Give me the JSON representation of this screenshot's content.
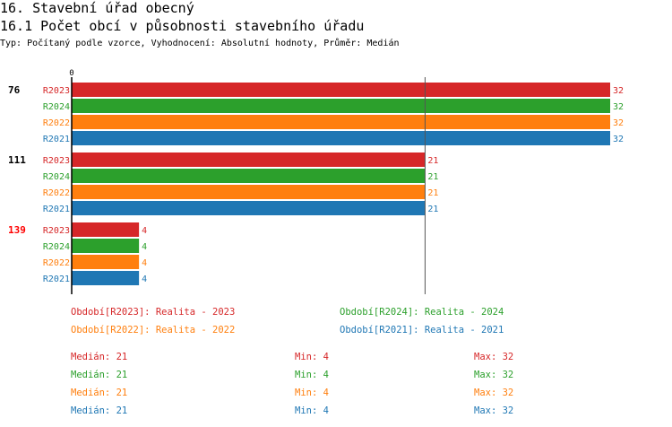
{
  "heading": "16. Stavební úřad obecný",
  "subheading": "16.1 Počet obcí v působnosti stavebního úřadu",
  "description": "Typ: Počítaný podle vzorce, Vyhodnocení: Absolutní hodnoty, Průměr: Medián",
  "colors": {
    "R2023": "#d62728",
    "R2024": "#2ca02c",
    "R2022": "#ff7f0e",
    "R2021": "#1f77b4"
  },
  "chart_data": {
    "type": "bar",
    "orientation": "horizontal",
    "x_tick_labels": [
      "0"
    ],
    "xlim": [
      0,
      32
    ],
    "reference_line": {
      "label": "Medián",
      "value": 21
    },
    "groups": [
      {
        "label": "76",
        "highlight": false,
        "bars": [
          {
            "series": "R2023",
            "value": 32
          },
          {
            "series": "R2024",
            "value": 32
          },
          {
            "series": "R2022",
            "value": 32
          },
          {
            "series": "R2021",
            "value": 32
          }
        ]
      },
      {
        "label": "111",
        "highlight": false,
        "bars": [
          {
            "series": "R2023",
            "value": 21
          },
          {
            "series": "R2024",
            "value": 21
          },
          {
            "series": "R2022",
            "value": 21
          },
          {
            "series": "R2021",
            "value": 21
          }
        ]
      },
      {
        "label": "139",
        "highlight": true,
        "bars": [
          {
            "series": "R2023",
            "value": 4
          },
          {
            "series": "R2024",
            "value": 4
          },
          {
            "series": "R2022",
            "value": 4
          },
          {
            "series": "R2021",
            "value": 4
          }
        ]
      }
    ]
  },
  "legend": [
    {
      "series": "R2023",
      "text": "Období[R2023]: Realita - 2023"
    },
    {
      "series": "R2024",
      "text": "Období[R2024]: Realita - 2024"
    },
    {
      "series": "R2022",
      "text": "Období[R2022]: Realita - 2022"
    },
    {
      "series": "R2021",
      "text": "Období[R2021]: Realita - 2021"
    }
  ],
  "stats": [
    {
      "series": "R2023",
      "median": "Medián: 21",
      "min": "Min: 4",
      "max": "Max: 32"
    },
    {
      "series": "R2024",
      "median": "Medián: 21",
      "min": "Min: 4",
      "max": "Max: 32"
    },
    {
      "series": "R2022",
      "median": "Medián: 21",
      "min": "Min: 4",
      "max": "Max: 32"
    },
    {
      "series": "R2021",
      "median": "Medián: 21",
      "min": "Min: 4",
      "max": "Max: 32"
    }
  ]
}
